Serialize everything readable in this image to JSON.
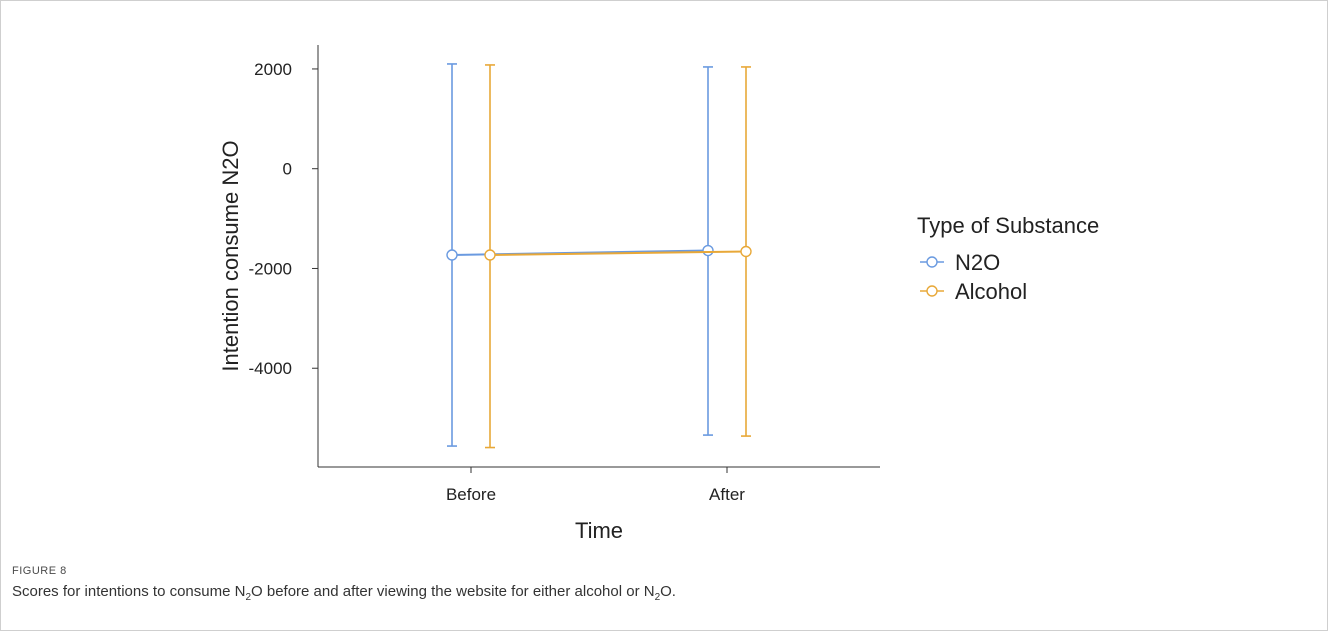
{
  "chart_data": {
    "type": "line",
    "x": [
      "Before",
      "After"
    ],
    "xlabel": "Time",
    "ylabel": "Intention consume N2O",
    "ylim": [
      -5980,
      2480
    ],
    "yticks": [
      2000,
      0,
      -2000,
      -4000
    ],
    "ytick_labels": [
      "2000",
      "0",
      "-2000",
      "-4000"
    ],
    "grid": false,
    "legend": {
      "title": "Type of Substance",
      "position": "right"
    },
    "series": [
      {
        "name": "N2O",
        "color": "#6a9ae0",
        "values": [
          -1730,
          -1640
        ],
        "lower": [
          -5560,
          -5340
        ],
        "upper": [
          2100,
          2040
        ]
      },
      {
        "name": "Alcohol",
        "color": "#e8a838",
        "values": [
          -1730,
          -1660
        ],
        "lower": [
          -5590,
          -5360
        ],
        "upper": [
          2080,
          2040
        ]
      }
    ]
  },
  "figure": {
    "label": "FIGURE 8",
    "caption_parts": [
      "Scores for intentions to consume N",
      "2",
      "O before and after viewing the website for either alcohol or N",
      "2",
      "O."
    ]
  }
}
